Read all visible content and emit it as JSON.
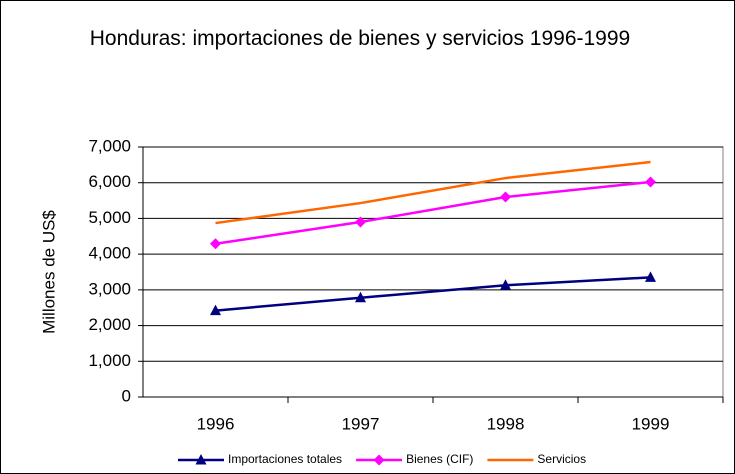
{
  "chart_data": {
    "type": "line",
    "title": "Honduras: importaciones de bienes y servicios 1996-1999",
    "y_label": "Millones de US$",
    "categories": [
      "1996",
      "1997",
      "1998",
      "1999"
    ],
    "series": [
      {
        "name": "Importaciones totales",
        "color": "#000080",
        "marker": "triangle",
        "values": [
          2420,
          2780,
          3130,
          3350
        ]
      },
      {
        "name": "Bienes (CIF)",
        "color": "#ff00ff",
        "marker": "diamond",
        "values": [
          4290,
          4900,
          5600,
          6020
        ]
      },
      {
        "name": "Servicios",
        "color": "#ff6600",
        "marker": "none",
        "values": [
          4870,
          5430,
          6130,
          6580
        ]
      }
    ],
    "ylim": [
      0,
      7000
    ],
    "yticks": [
      0,
      {
        "value": 1000,
        "label": "1,000"
      },
      {
        "value": 2000,
        "label": "2,000"
      },
      {
        "value": 3000,
        "label": "3,000"
      },
      {
        "value": 4000,
        "label": "4,000"
      },
      {
        "value": 5000,
        "label": "5,000"
      },
      {
        "value": 6000,
        "label": "6,000"
      },
      {
        "value": 7000,
        "label": "7,000"
      }
    ],
    "grid": true,
    "legend": "bottom"
  }
}
